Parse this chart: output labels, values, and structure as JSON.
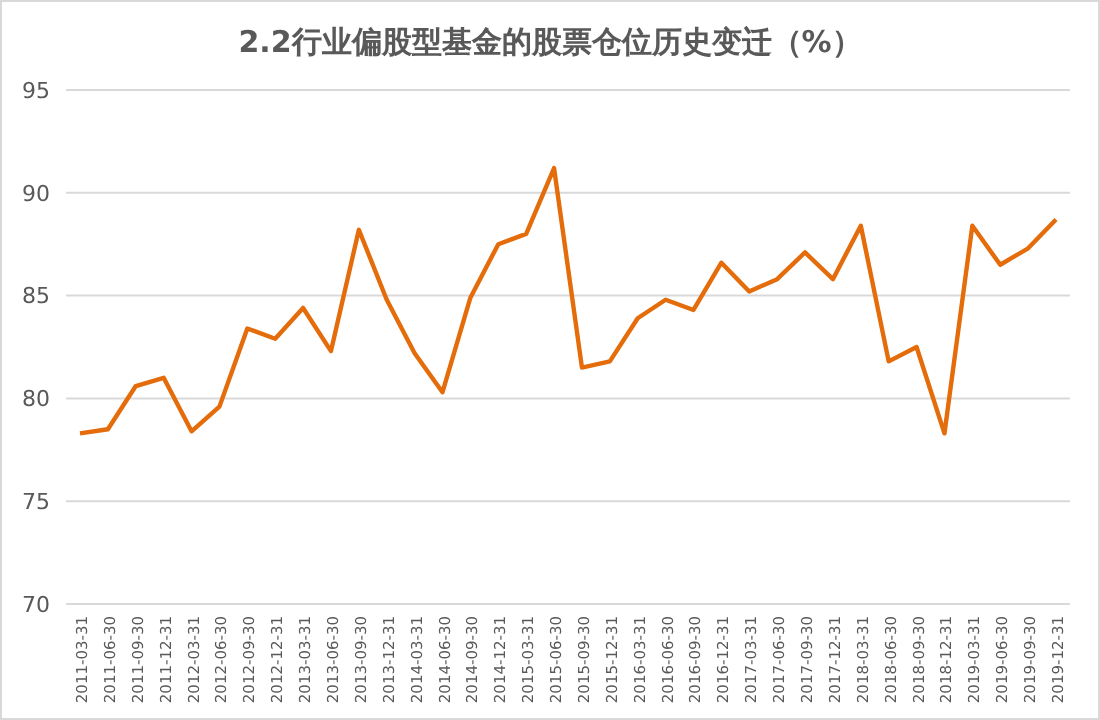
{
  "chart_data": {
    "type": "line",
    "title": "2.2行业偏股型基金的股票仓位历史变迁（%）",
    "categories": [
      "2011-03-31",
      "2011-06-30",
      "2011-09-30",
      "2011-12-31",
      "2012-03-31",
      "2012-06-30",
      "2012-09-30",
      "2012-12-31",
      "2013-03-31",
      "2013-06-30",
      "2013-09-30",
      "2013-12-31",
      "2014-03-31",
      "2014-06-30",
      "2014-09-30",
      "2014-12-31",
      "2015-03-31",
      "2015-06-30",
      "2015-09-30",
      "2015-12-31",
      "2016-03-31",
      "2016-06-30",
      "2016-09-30",
      "2016-12-31",
      "2017-03-31",
      "2017-06-30",
      "2017-09-30",
      "2017-12-31",
      "2018-03-31",
      "2018-06-30",
      "2018-09-30",
      "2018-12-31",
      "2019-03-31",
      "2019-06-30",
      "2019-09-30",
      "2019-12-31"
    ],
    "series": [
      {
        "color": "#e46c0a",
        "values": [
          78.3,
          78.5,
          80.6,
          81.0,
          78.4,
          79.6,
          83.4,
          82.9,
          84.4,
          82.3,
          88.2,
          84.8,
          82.2,
          80.3,
          84.9,
          87.5,
          88.0,
          91.2,
          81.5,
          81.8,
          83.9,
          84.8,
          84.3,
          86.6,
          85.2,
          85.8,
          87.1,
          85.8,
          88.4,
          81.8,
          82.5,
          78.3,
          88.4,
          86.5,
          87.3,
          88.7
        ]
      }
    ],
    "ylim": [
      70,
      95
    ],
    "yticks": [
      70,
      75,
      80,
      85,
      90,
      95
    ],
    "grid": "y",
    "marker": "none",
    "line_style": "solid"
  }
}
